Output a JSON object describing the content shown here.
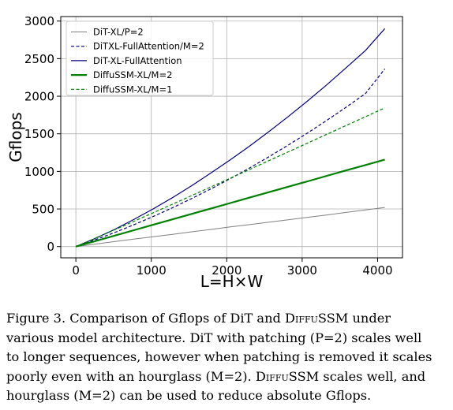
{
  "chart_data": {
    "type": "line",
    "xlabel": "L=H×W",
    "ylabel": "Gflops",
    "xlim": [
      -200,
      4330
    ],
    "ylim": [
      -150,
      3060
    ],
    "xticks": [
      0,
      1000,
      2000,
      3000,
      4000
    ],
    "yticks": [
      0,
      500,
      1000,
      1500,
      2000,
      2500,
      3000
    ],
    "grid": true,
    "legend_position": "top-left",
    "x": [
      0,
      256,
      512,
      768,
      1024,
      1280,
      1536,
      1792,
      2048,
      2304,
      2560,
      2816,
      3072,
      3328,
      3584,
      3840,
      4096
    ],
    "series": [
      {
        "name": "DiT-XL/P=2",
        "color": "#808080",
        "style": "solid",
        "width": 1,
        "values": [
          0,
          33,
          66,
          99,
          131,
          163,
          196,
          228,
          261,
          292,
          325,
          357,
          389,
          421,
          454,
          487,
          520
        ]
      },
      {
        "name": "DiTXL-FullAttention/M=2",
        "color": "#000080",
        "style": "dashed",
        "width": 1.2,
        "values": [
          0,
          90,
          186,
          290,
          400,
          516,
          639,
          768,
          904,
          1046,
          1195,
          1350,
          1512,
          1680,
          1855,
          2036,
          2364
        ]
      },
      {
        "name": "DiT-XL-FullAttention",
        "color": "#000080",
        "style": "solid",
        "width": 1.2,
        "values": [
          0,
          108,
          228,
          360,
          500,
          650,
          810,
          980,
          1155,
          1338,
          1530,
          1730,
          1938,
          2154,
          2380,
          2610,
          2900
        ]
      },
      {
        "name": "DiffuSSM-XL/M=2",
        "color": "#008000",
        "style": "solid",
        "width": 2.2,
        "values": [
          0,
          72,
          145,
          217,
          290,
          362,
          434,
          507,
          579,
          651,
          724,
          796,
          868,
          941,
          1013,
          1085,
          1157
        ]
      },
      {
        "name": "DiffuSSM-XL/M=1",
        "color": "#008000",
        "style": "dashed",
        "width": 1.2,
        "values": [
          0,
          110,
          222,
          335,
          449,
          563,
          678,
          794,
          910,
          1026,
          1143,
          1260,
          1377,
          1494,
          1611,
          1728,
          1845
        ]
      }
    ]
  },
  "caption": {
    "lines": [
      [
        {
          "t": "Figure 3.  Comparison of Gflops of DiT and "
        },
        {
          "t": "DiffuSSM",
          "sc": true
        },
        {
          "t": " under"
        }
      ],
      [
        {
          "t": "various model architecture. DiT with patching (P=2) scales well"
        }
      ],
      [
        {
          "t": "to longer sequences, however when patching is removed it scales"
        }
      ],
      [
        {
          "t": "poorly even with an hourglass (M=2). "
        },
        {
          "t": "DiffuSSM",
          "sc": true
        },
        {
          "t": " scales well, and"
        }
      ],
      [
        {
          "t": "hourglass (M=2) can be used to reduce absolute Gflops."
        }
      ]
    ]
  }
}
